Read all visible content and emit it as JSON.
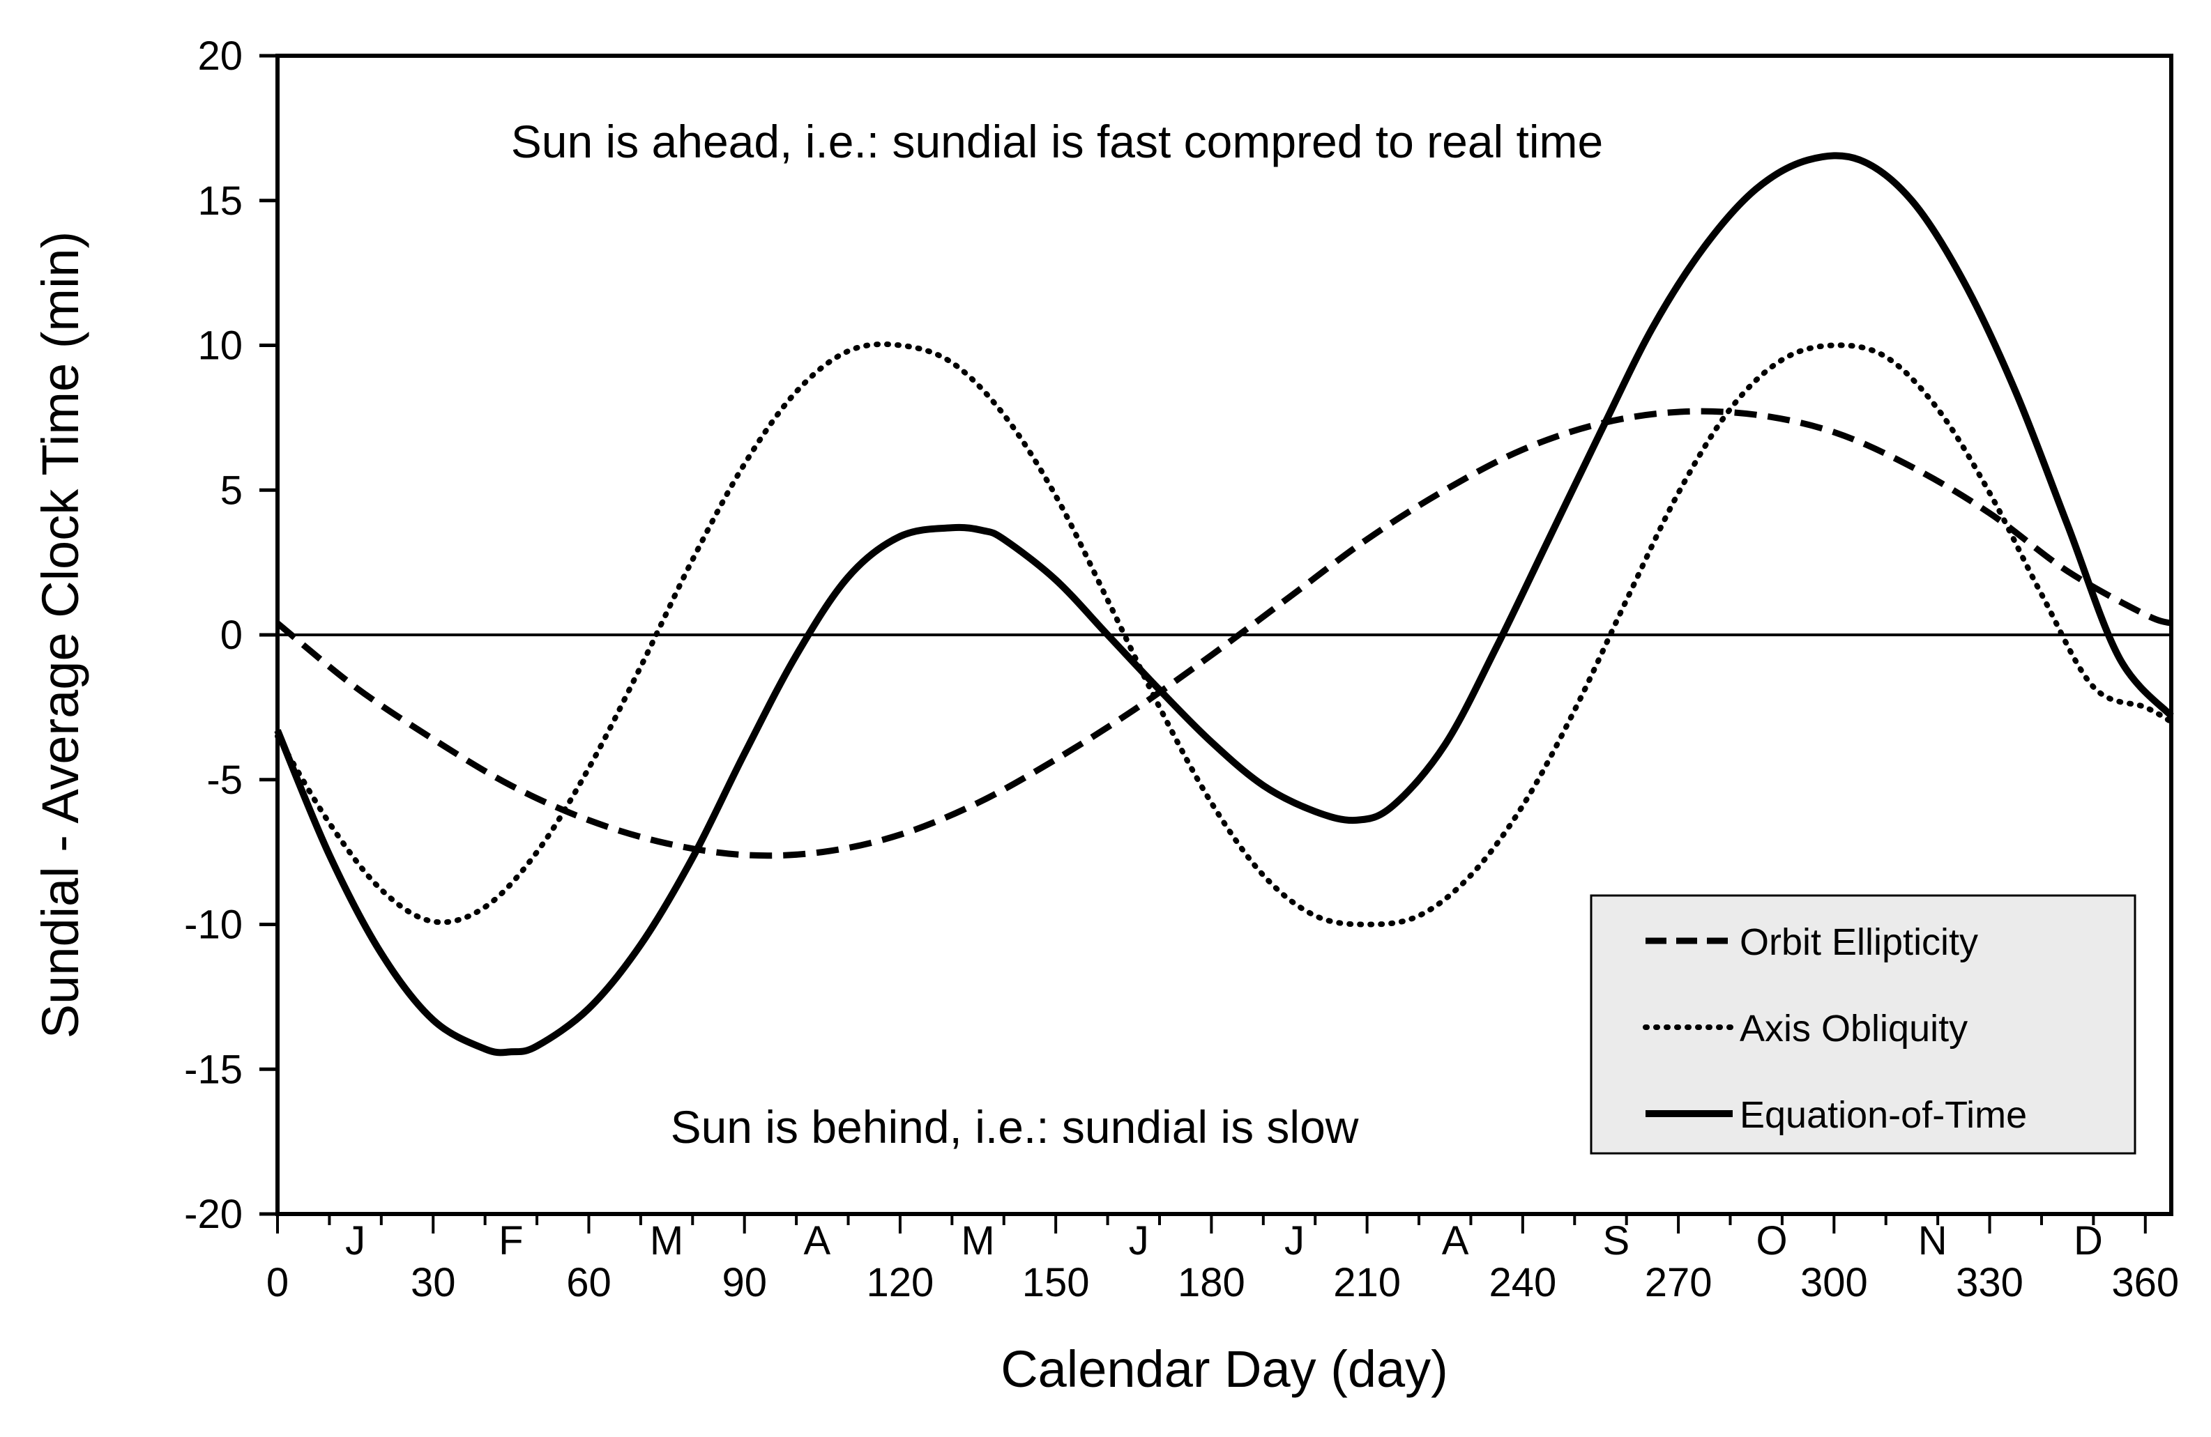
{
  "chart_data": {
    "type": "line",
    "title": "",
    "xlabel": "Calendar Day (day)",
    "ylabel": "Sundial - Average Clock Time (min)",
    "xlim": [
      0,
      365
    ],
    "ylim": [
      -20,
      20
    ],
    "xticks": [
      0,
      30,
      60,
      90,
      120,
      150,
      180,
      210,
      240,
      270,
      300,
      330,
      360
    ],
    "yticks": [
      -20,
      -15,
      -10,
      -5,
      0,
      5,
      10,
      15,
      20
    ],
    "month_labels": [
      {
        "label": "J",
        "day": 15
      },
      {
        "label": "F",
        "day": 45
      },
      {
        "label": "M",
        "day": 75
      },
      {
        "label": "A",
        "day": 104
      },
      {
        "label": "M",
        "day": 135
      },
      {
        "label": "J",
        "day": 166
      },
      {
        "label": "J",
        "day": 196
      },
      {
        "label": "A",
        "day": 227
      },
      {
        "label": "S",
        "day": 258
      },
      {
        "label": "O",
        "day": 288
      },
      {
        "label": "N",
        "day": 319
      },
      {
        "label": "D",
        "day": 349
      }
    ],
    "annotations": {
      "ahead": "Sun is ahead, i.e.: sundial is fast compred to real time",
      "behind": "Sun is behind, i.e.: sundial is slow"
    },
    "legend_position": "bottom-right",
    "series": [
      {
        "name": "Orbit Ellipticity",
        "style": "dashed",
        "x": [
          0,
          15,
          30,
          45,
          60,
          75,
          90,
          105,
          120,
          135,
          150,
          165,
          180,
          195,
          210,
          225,
          240,
          255,
          270,
          285,
          300,
          315,
          330,
          345,
          360,
          365
        ],
        "y": [
          0.4,
          -1.8,
          -3.6,
          -5.2,
          -6.4,
          -7.2,
          -7.6,
          -7.5,
          -6.9,
          -5.8,
          -4.3,
          -2.6,
          -0.7,
          1.3,
          3.3,
          5.0,
          6.4,
          7.3,
          7.7,
          7.6,
          7.0,
          5.8,
          4.2,
          2.2,
          0.7,
          0.4
        ]
      },
      {
        "name": "Axis Obliquity",
        "style": "dotted",
        "x": [
          0,
          10,
          20,
          30,
          40,
          50,
          60,
          70,
          80,
          90,
          100,
          110,
          120,
          130,
          140,
          150,
          160,
          170,
          180,
          190,
          200,
          210,
          220,
          230,
          240,
          250,
          260,
          270,
          280,
          290,
          300,
          310,
          320,
          330,
          340,
          350,
          360,
          365
        ],
        "y": [
          -3.5,
          -6.5,
          -8.8,
          -9.9,
          -9.4,
          -7.5,
          -4.6,
          -1.1,
          2.6,
          5.9,
          8.4,
          9.8,
          10.0,
          9.4,
          7.6,
          4.8,
          1.2,
          -2.5,
          -5.8,
          -8.3,
          -9.7,
          -10.0,
          -9.7,
          -8.3,
          -5.9,
          -2.6,
          1.2,
          4.9,
          7.8,
          9.5,
          10.0,
          9.6,
          7.8,
          4.9,
          1.4,
          -1.8,
          -2.5,
          -3.0
        ]
      },
      {
        "name": "Equation-of-Time",
        "style": "solid",
        "x": [
          0,
          10,
          20,
          30,
          40,
          45,
          50,
          60,
          70,
          80,
          90,
          100,
          110,
          120,
          130,
          136,
          140,
          150,
          160,
          170,
          180,
          190,
          200,
          208,
          215,
          225,
          235,
          245,
          255,
          265,
          275,
          285,
          295,
          305,
          315,
          325,
          335,
          345,
          355,
          365
        ],
        "y": [
          -3.3,
          -7.6,
          -11.0,
          -13.3,
          -14.3,
          -14.4,
          -14.2,
          -12.9,
          -10.7,
          -7.7,
          -4.1,
          -0.7,
          2.0,
          3.4,
          3.7,
          3.6,
          3.3,
          1.9,
          0.0,
          -1.9,
          -3.7,
          -5.2,
          -6.1,
          -6.4,
          -5.9,
          -3.8,
          -0.4,
          3.3,
          7.0,
          10.6,
          13.4,
          15.4,
          16.4,
          16.4,
          15.0,
          12.2,
          8.4,
          3.8,
          -0.8,
          -2.8
        ]
      }
    ]
  }
}
